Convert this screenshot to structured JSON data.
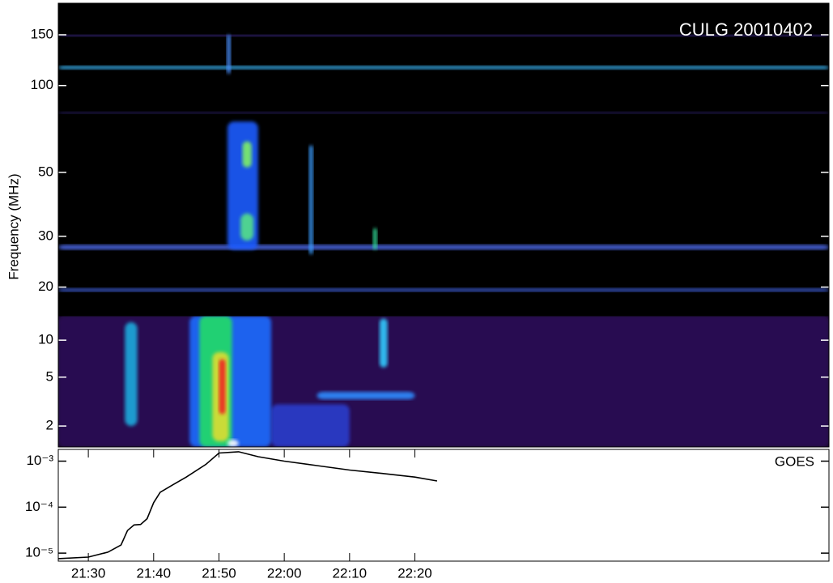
{
  "chart_data": [
    {
      "type": "spectrogram",
      "title": "CULG 20010402",
      "ylabel": "Frequency (MHz)",
      "log": true,
      "xlim": [
        1285.4,
        1403.4
      ],
      "ylim": [
        15.9,
        193
      ],
      "yticks": [
        20,
        30,
        50,
        100,
        150
      ],
      "background": "#000000",
      "features": [
        {
          "t0": 1285.4,
          "t1": 1403.4,
          "f0": 114,
          "f1": 117,
          "color": "#3bbcff"
        },
        {
          "t0": 1285.4,
          "t1": 1403.4,
          "f0": 148,
          "f1": 150,
          "color": "#5a3cc8"
        },
        {
          "t0": 1285.4,
          "t1": 1403.4,
          "f0": 80,
          "f1": 81,
          "color": "#3a2a90"
        },
        {
          "t0": 1285.4,
          "t1": 1403.4,
          "f0": 27,
          "f1": 28,
          "color": "#4f6df0"
        },
        {
          "t0": 1285.4,
          "t1": 1403.4,
          "f0": 19.3,
          "f1": 19.8,
          "color": "#4060e0"
        },
        {
          "t0": 1311.3,
          "t1": 1316,
          "f0": 27,
          "f1": 75,
          "color": "#1a5cff"
        },
        {
          "t0": 1313.6,
          "t1": 1315,
          "f0": 52,
          "f1": 64,
          "color": "#7fef66"
        },
        {
          "t0": 1313.3,
          "t1": 1315.3,
          "f0": 29,
          "f1": 36,
          "color": "#55e088"
        },
        {
          "t0": 1323.8,
          "t1": 1324.4,
          "f0": 26,
          "f1": 62,
          "color": "#3a9cff"
        },
        {
          "t0": 1333.6,
          "t1": 1334.2,
          "f0": 27,
          "f1": 32,
          "color": "#33dd99"
        },
        {
          "t0": 1311.2,
          "t1": 1311.8,
          "f0": 110,
          "f1": 150,
          "color": "#4a90ff"
        }
      ]
    },
    {
      "type": "spectrogram",
      "log": true,
      "xlim": [
        1285.4,
        1403.4
      ],
      "ylim": [
        1.35,
        15.8
      ],
      "yticks": [
        2,
        5,
        10
      ],
      "background": "#1a0830",
      "features": [
        {
          "t0": 1285.4,
          "t1": 1403.4,
          "f0": 1.35,
          "f1": 15.8,
          "color": "#2a0c55"
        },
        {
          "t0": 1318,
          "t1": 1330,
          "f0": 1.35,
          "f1": 3,
          "color": "#2a3ecc"
        },
        {
          "t0": 1295.6,
          "t1": 1297.5,
          "f0": 2,
          "f1": 14,
          "color": "#1aaadd"
        },
        {
          "t0": 1305.5,
          "t1": 1318,
          "f0": 1.35,
          "f1": 15.8,
          "color": "#1a6cff"
        },
        {
          "t0": 1307,
          "t1": 1312,
          "f0": 1.35,
          "f1": 15.8,
          "color": "#22dd66"
        },
        {
          "t0": 1309,
          "t1": 1311.5,
          "f0": 1.5,
          "f1": 8,
          "color": "#dddd33"
        },
        {
          "t0": 1310,
          "t1": 1311,
          "f0": 2.5,
          "f1": 7,
          "color": "#ee2222"
        },
        {
          "t0": 1311.3,
          "t1": 1313,
          "f0": 1.35,
          "f1": 1.55,
          "color": "#ffffff"
        },
        {
          "t0": 1334.6,
          "t1": 1335.8,
          "f0": 6,
          "f1": 15,
          "color": "#33ccff"
        },
        {
          "t0": 1325,
          "t1": 1340,
          "f0": 3.3,
          "f1": 3.8,
          "color": "#2f8cff"
        }
      ]
    },
    {
      "type": "line",
      "title": "GOES",
      "log": true,
      "color": "#000000",
      "xlim": [
        1285.4,
        1403.4
      ],
      "ylim": [
        6.7e-06,
        0.0018
      ],
      "xticks": [
        {
          "value": 1290,
          "label": "21:30"
        },
        {
          "value": 1300,
          "label": "21:40"
        },
        {
          "value": 1310,
          "label": "21:50"
        },
        {
          "value": 1320,
          "label": "22:00"
        },
        {
          "value": 1330,
          "label": "22:10"
        },
        {
          "value": 1340,
          "label": "22:20"
        }
      ],
      "yticks": [
        {
          "value": 1e-05,
          "label": "10⁻⁵"
        },
        {
          "value": 0.0001,
          "label": "10⁻⁴"
        },
        {
          "value": 0.001,
          "label": "10⁻³"
        }
      ],
      "x": [
        1285.4,
        1290,
        1293,
        1295,
        1296,
        1297,
        1298,
        1299,
        1300,
        1301,
        1303,
        1305,
        1308,
        1310,
        1313,
        1316,
        1320,
        1325,
        1330,
        1335,
        1340,
        1343.4
      ],
      "values": [
        7.6e-06,
        8.2e-06,
        1.05e-05,
        1.5e-05,
        3.1e-05,
        4.1e-05,
        4.2e-05,
        5.6e-05,
        0.000125,
        0.00021,
        0.00031,
        0.00045,
        0.00085,
        0.0015,
        0.0016,
        0.00125,
        0.001,
        0.0008,
        0.00064,
        0.00054,
        0.00045,
        0.00037
      ]
    }
  ]
}
